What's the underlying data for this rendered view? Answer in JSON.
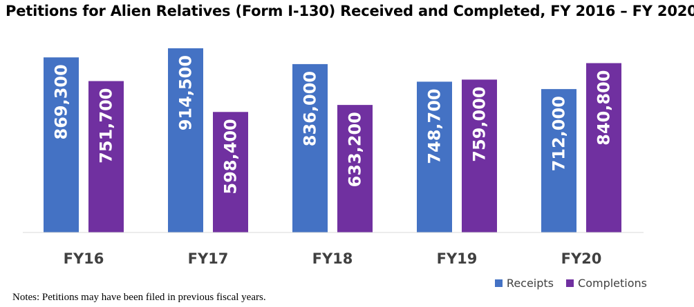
{
  "chart_data": {
    "type": "bar",
    "title": "Petitions for Alien Relatives (Form I-130) Received and Completed, FY 2016 – FY 2020",
    "categories": [
      "FY16",
      "FY17",
      "FY18",
      "FY19",
      "FY20"
    ],
    "series": [
      {
        "name": "Receipts",
        "color": "#4472C4",
        "values": [
          869300,
          914500,
          836000,
          748700,
          712000
        ],
        "labels": [
          "869,300",
          "914,500",
          "836,000",
          "748,700",
          "712,000"
        ]
      },
      {
        "name": "Completions",
        "color": "#7030A0",
        "values": [
          751700,
          598400,
          633200,
          759000,
          840800
        ],
        "labels": [
          "751,700",
          "598,400",
          "633,200",
          "759,000",
          "840,800"
        ]
      }
    ],
    "ylim": [
      0,
      935000
    ],
    "grid": false,
    "legend_position": "bottom-right",
    "xlabel": "",
    "ylabel": ""
  },
  "notes": "Notes:  Petitions may have been filed in previous fiscal years."
}
